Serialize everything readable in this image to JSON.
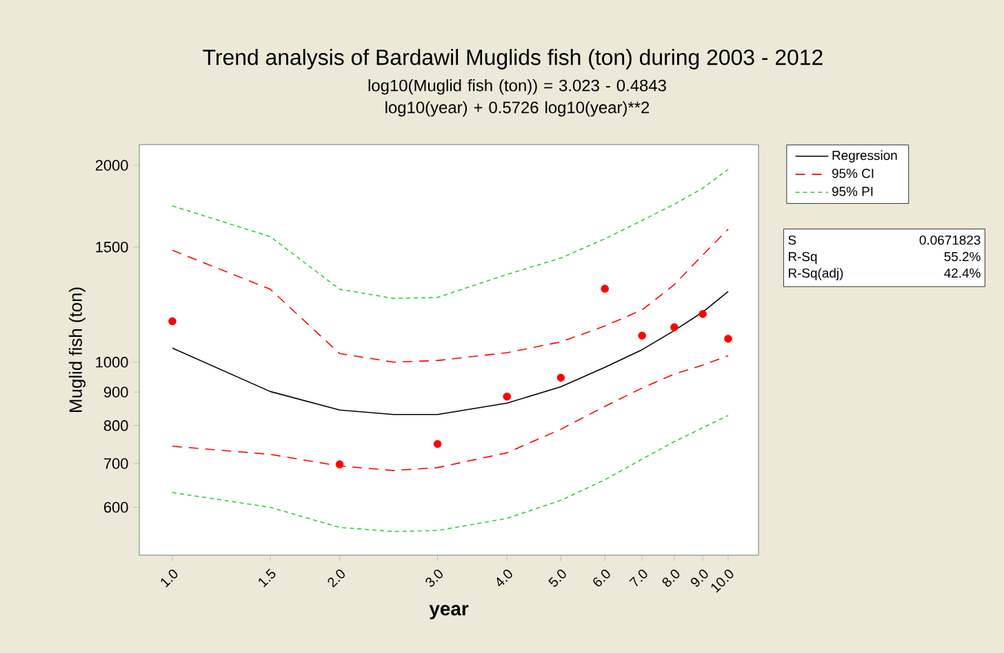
{
  "chart_data": {
    "type": "line",
    "title": "Trend analysis of Bardawil Muglids fish (ton) during 2003 - 2012",
    "subtitle": "log10(Muglid fish (ton)) =  3.023 - 0.4843 log10(year) + 0.5726 log10(year)**2",
    "xlabel": "year",
    "ylabel": "Muglid fish (ton)",
    "log": "xy",
    "xlim": [
      0.872,
      11.34
    ],
    "ylim": [
      507,
      2151
    ],
    "xticks": [
      {
        "value": 1,
        "label": "1.0"
      },
      {
        "value": 1.5,
        "label": "1.5"
      },
      {
        "value": 2,
        "label": "2.0"
      },
      {
        "value": 3,
        "label": "3.0"
      },
      {
        "value": 4,
        "label": "4.0"
      },
      {
        "value": 5,
        "label": "5.0"
      },
      {
        "value": 6,
        "label": "6.0"
      },
      {
        "value": 7,
        "label": "7.0"
      },
      {
        "value": 8,
        "label": "8.0"
      },
      {
        "value": 9,
        "label": "9.0"
      },
      {
        "value": 10,
        "label": "10.0"
      }
    ],
    "yticks": [
      600,
      700,
      800,
      900,
      1000,
      1500,
      2000
    ],
    "legend": "right",
    "grid": false,
    "series": [
      {
        "type": "scatter",
        "marker": "circle",
        "color": "#ff0000",
        "x": [
          1,
          2,
          3,
          4,
          5,
          6,
          7,
          8,
          9,
          10
        ],
        "values": [
          1155,
          698,
          750,
          886,
          947,
          1295,
          1098,
          1131,
          1185,
          1086
        ]
      },
      {
        "name": "Regression",
        "color": "#000000",
        "line_style": "solid",
        "x": [
          1,
          1.5,
          2,
          2.5,
          3,
          4,
          5,
          6,
          7,
          8,
          9,
          10
        ],
        "values": [
          1051,
          902,
          845,
          832,
          832,
          866,
          917,
          982,
          1045,
          1118,
          1193,
          1283
        ]
      },
      {
        "name": "95% CI",
        "color": "#ff0000",
        "line_style": "dashed",
        "x": [
          1,
          1.5,
          2,
          2.5,
          3,
          4,
          5,
          6,
          7,
          8,
          9,
          10
        ],
        "values": [
          1483,
          1293,
          1031,
          1000,
          1006,
          1034,
          1074,
          1136,
          1202,
          1314,
          1459,
          1597
        ]
      },
      {
        "color": "#ff0000",
        "line_style": "dashed",
        "x": [
          1,
          1.5,
          2,
          2.5,
          3,
          4,
          5,
          6,
          7,
          8,
          9,
          10
        ],
        "values": [
          744,
          723,
          694,
          683,
          690,
          727,
          790,
          856,
          913,
          959,
          990,
          1023
        ]
      },
      {
        "name": "95% PI",
        "color": "#33cc33",
        "line_style": "dotted",
        "x": [
          1,
          1.5,
          2,
          2.5,
          3,
          4,
          5,
          6,
          7,
          8,
          9,
          10
        ],
        "values": [
          1734,
          1556,
          1293,
          1252,
          1256,
          1362,
          1443,
          1544,
          1647,
          1744,
          1845,
          1972
        ]
      },
      {
        "color": "#33cc33",
        "line_style": "dotted",
        "x": [
          1,
          1.5,
          2,
          2.5,
          3,
          4,
          5,
          6,
          7,
          8,
          9,
          10
        ],
        "values": [
          632,
          600,
          559,
          551,
          553,
          577,
          615,
          661,
          711,
          756,
          794,
          829
        ]
      }
    ],
    "annotations": [
      "S",
      "0.0671823",
      "R-Sq",
      "55.2%",
      "R-Sq(adj)",
      "42.4%"
    ]
  }
}
